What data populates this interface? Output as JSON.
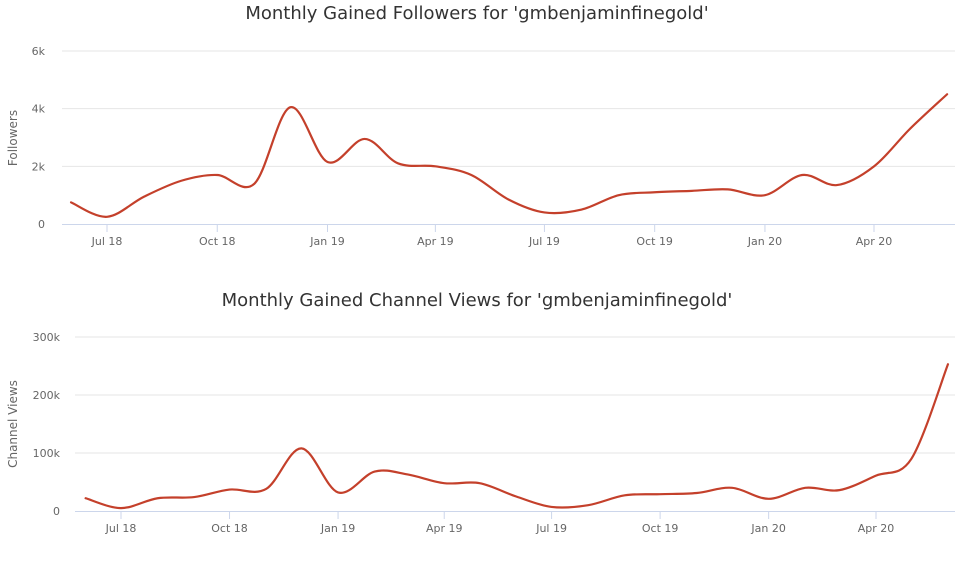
{
  "colors": {
    "line": "#c4402b",
    "grid": "#e6e6e6",
    "axis": "#ccd6eb"
  },
  "chart_data": [
    {
      "type": "line",
      "title": "Monthly Gained Followers for 'gmbenjaminfinegold'",
      "xlabel": "",
      "ylabel": "Followers",
      "ylim": [
        0,
        6000
      ],
      "yticks": [
        {
          "value": 0,
          "label": "0"
        },
        {
          "value": 2000,
          "label": "2k"
        },
        {
          "value": 4000,
          "label": "4k"
        },
        {
          "value": 6000,
          "label": "6k"
        }
      ],
      "xticks": [
        {
          "date": "2018-07",
          "label": "Jul 18"
        },
        {
          "date": "2018-10",
          "label": "Oct 18"
        },
        {
          "date": "2019-01",
          "label": "Jan 19"
        },
        {
          "date": "2019-04",
          "label": "Apr 19"
        },
        {
          "date": "2019-07",
          "label": "Jul 19"
        },
        {
          "date": "2019-10",
          "label": "Oct 19"
        },
        {
          "date": "2020-01",
          "label": "Jan 20"
        },
        {
          "date": "2020-04",
          "label": "Apr 20"
        }
      ],
      "grid": true,
      "x": [
        "2018-06",
        "2018-07",
        "2018-08",
        "2018-09",
        "2018-10",
        "2018-11",
        "2018-12",
        "2019-01",
        "2019-02",
        "2019-03",
        "2019-04",
        "2019-05",
        "2019-06",
        "2019-07",
        "2019-08",
        "2019-09",
        "2019-10",
        "2019-11",
        "2019-12",
        "2020-01",
        "2020-02",
        "2020-03",
        "2020-04",
        "2020-05",
        "2020-06"
      ],
      "values": [
        750,
        250,
        950,
        1500,
        1700,
        1400,
        4050,
        2150,
        2950,
        2100,
        2000,
        1700,
        850,
        400,
        500,
        1000,
        1100,
        1150,
        1200,
        1000,
        1700,
        1350,
        2000,
        3300,
        4500
      ]
    },
    {
      "type": "line",
      "title": "Monthly Gained Channel Views for 'gmbenjaminfinegold'",
      "xlabel": "",
      "ylabel": "Channel Views",
      "ylim": [
        0,
        300000
      ],
      "yticks": [
        {
          "value": 0,
          "label": "0"
        },
        {
          "value": 100000,
          "label": "100k"
        },
        {
          "value": 200000,
          "label": "200k"
        },
        {
          "value": 300000,
          "label": "300k"
        }
      ],
      "xticks": [
        {
          "date": "2018-07",
          "label": "Jul 18"
        },
        {
          "date": "2018-10",
          "label": "Oct 18"
        },
        {
          "date": "2019-01",
          "label": "Jan 19"
        },
        {
          "date": "2019-04",
          "label": "Apr 19"
        },
        {
          "date": "2019-07",
          "label": "Jul 19"
        },
        {
          "date": "2019-10",
          "label": "Oct 19"
        },
        {
          "date": "2020-01",
          "label": "Jan 20"
        },
        {
          "date": "2020-04",
          "label": "Apr 20"
        }
      ],
      "grid": true,
      "x": [
        "2018-06",
        "2018-07",
        "2018-08",
        "2018-09",
        "2018-10",
        "2018-11",
        "2018-12",
        "2019-01",
        "2019-02",
        "2019-03",
        "2019-04",
        "2019-05",
        "2019-06",
        "2019-07",
        "2019-08",
        "2019-09",
        "2019-10",
        "2019-11",
        "2019-12",
        "2020-01",
        "2020-02",
        "2020-03",
        "2020-04",
        "2020-05",
        "2020-06"
      ],
      "values": [
        22000,
        5000,
        22000,
        24000,
        37000,
        38000,
        108000,
        32000,
        68000,
        63000,
        48000,
        48000,
        25000,
        7000,
        10000,
        27000,
        29000,
        31000,
        40000,
        21000,
        40000,
        36000,
        61000,
        90000,
        253000
      ]
    }
  ]
}
